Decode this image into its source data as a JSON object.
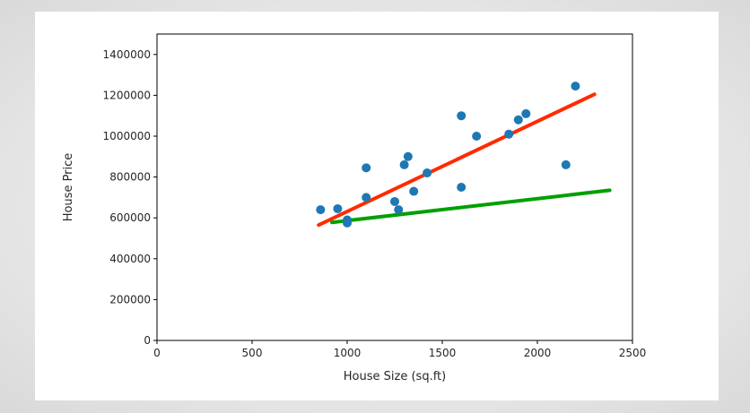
{
  "chart_data": {
    "type": "scatter",
    "xlabel": "House Size (sq.ft)",
    "ylabel": "House Price",
    "xlim": [
      0,
      2500
    ],
    "ylim": [
      0,
      1500000
    ],
    "xticks": [
      "0",
      "500",
      "1000",
      "1500",
      "2000",
      "2500"
    ],
    "yticks": [
      "0",
      "200000",
      "400000",
      "600000",
      "800000",
      "1000000",
      "1200000",
      "1400000"
    ],
    "grid": false,
    "legend": "none",
    "scatter": {
      "color": "#1f77b4",
      "points": [
        {
          "x": 860,
          "y": 640000
        },
        {
          "x": 950,
          "y": 645000
        },
        {
          "x": 1000,
          "y": 590000
        },
        {
          "x": 1000,
          "y": 575000
        },
        {
          "x": 1100,
          "y": 700000
        },
        {
          "x": 1100,
          "y": 845000
        },
        {
          "x": 1250,
          "y": 680000
        },
        {
          "x": 1270,
          "y": 640000
        },
        {
          "x": 1300,
          "y": 860000
        },
        {
          "x": 1320,
          "y": 900000
        },
        {
          "x": 1350,
          "y": 730000
        },
        {
          "x": 1420,
          "y": 820000
        },
        {
          "x": 1600,
          "y": 1100000
        },
        {
          "x": 1600,
          "y": 750000
        },
        {
          "x": 1680,
          "y": 1000000
        },
        {
          "x": 1850,
          "y": 1010000
        },
        {
          "x": 1900,
          "y": 1080000
        },
        {
          "x": 1940,
          "y": 1110000
        },
        {
          "x": 2150,
          "y": 860000
        },
        {
          "x": 2200,
          "y": 1245000
        }
      ]
    },
    "lines": [
      {
        "color": "#ff2a00",
        "points": [
          {
            "x": 850,
            "y": 565000
          },
          {
            "x": 2300,
            "y": 1205000
          }
        ]
      },
      {
        "color": "#00a000",
        "points": [
          {
            "x": 920,
            "y": 578000
          },
          {
            "x": 2380,
            "y": 735000
          }
        ]
      }
    ]
  }
}
